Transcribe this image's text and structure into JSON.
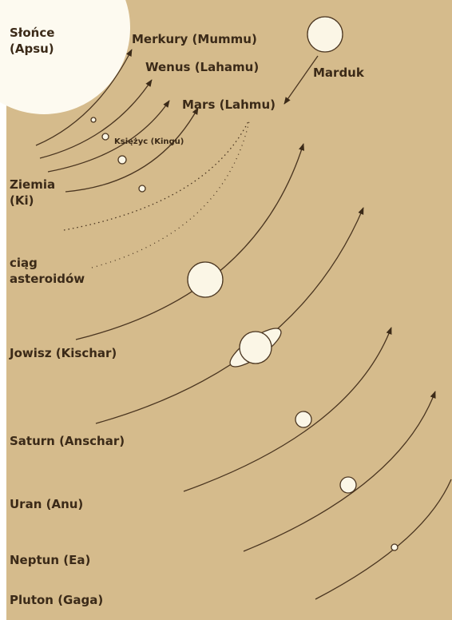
{
  "labels": {
    "sun": [
      "Słońce",
      "(Apsu)"
    ],
    "mercury": "Merkury (Mummu)",
    "venus": "Wenus (Lahamu)",
    "mars": "Mars (Lahmu)",
    "marduk": "Marduk",
    "moon": "Księżyc (Kingu)",
    "earth": [
      "Ziemia",
      "(Ki)"
    ],
    "asteroids": [
      "ciąg",
      "asteroidów"
    ],
    "jupiter": "Jowisz (Kischar)",
    "saturn": "Saturn (Anschar)",
    "uranus": "Uran (Anu)",
    "neptune": "Neptun (Ea)",
    "pluto": "Pluton (Gaga)"
  }
}
